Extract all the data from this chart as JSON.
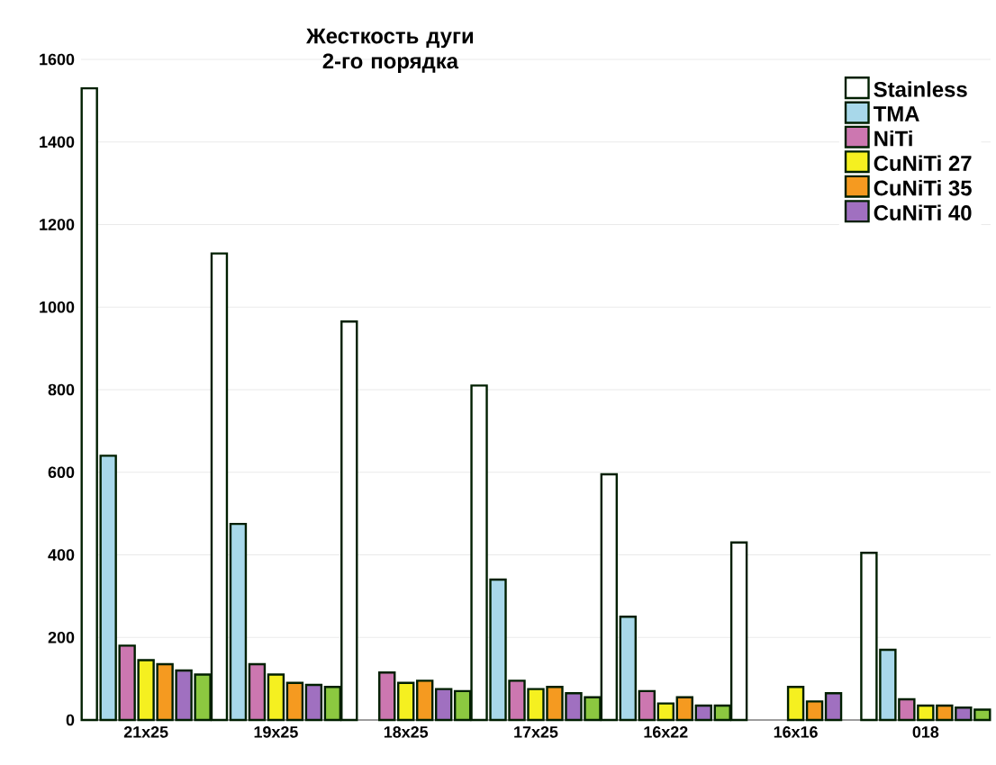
{
  "chart_data": {
    "type": "bar",
    "title": "Жесткость дуги 2-го порядка",
    "categories": [
      "21x25",
      "19x25",
      "18x25",
      "17x25",
      "16x22",
      "16x16",
      "018"
    ],
    "series": [
      {
        "name": "Stainless",
        "color": "#ffffff",
        "values": [
          1530,
          1130,
          965,
          810,
          595,
          430,
          405
        ]
      },
      {
        "name": "TMA",
        "color": "#a8d8ea",
        "values": [
          640,
          475,
          null,
          340,
          250,
          null,
          170
        ]
      },
      {
        "name": "NiTi",
        "color": "#cc77b0",
        "values": [
          180,
          135,
          115,
          95,
          70,
          null,
          50
        ]
      },
      {
        "name": "CuNiTi 27",
        "color": "#f5f020",
        "values": [
          145,
          110,
          90,
          75,
          40,
          80,
          35
        ]
      },
      {
        "name": "CuNiTi 35",
        "color": "#f59a20",
        "values": [
          135,
          90,
          95,
          80,
          55,
          45,
          35
        ]
      },
      {
        "name": "CuNiTi 40",
        "color": "#a070c0",
        "values": [
          120,
          85,
          75,
          65,
          35,
          65,
          30
        ]
      },
      {
        "color": "#8cc840",
        "values": [
          110,
          80,
          70,
          55,
          35,
          null,
          25
        ]
      }
    ],
    "ylim": [
      0,
      1600
    ],
    "yticks": [
      0,
      200,
      400,
      600,
      800,
      1000,
      1200,
      1400,
      1600
    ],
    "grid": "y",
    "legend": "top right"
  }
}
